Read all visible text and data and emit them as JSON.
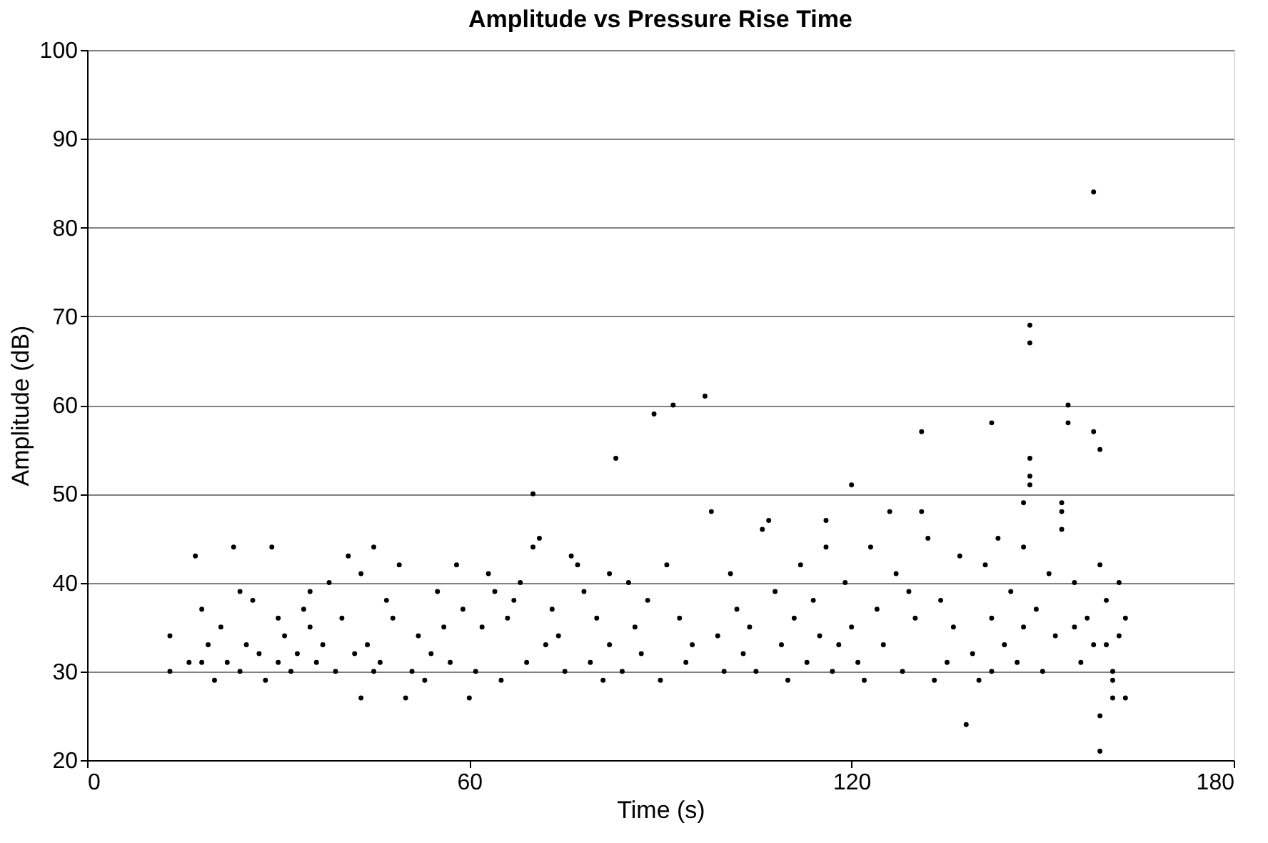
{
  "chart_data": {
    "type": "scatter",
    "title": "Amplitude vs Pressure Rise Time",
    "xlabel": "Time (s)",
    "ylabel": "Amplitude (dB)",
    "xlim": [
      0,
      180
    ],
    "xticks": [
      0,
      60,
      120,
      180
    ],
    "ylim": [
      20,
      100
    ],
    "yticks": [
      20,
      30,
      40,
      50,
      60,
      70,
      80,
      90,
      100
    ],
    "grid": "y",
    "series": [
      {
        "color": "#000000",
        "x": [
          13,
          13,
          16,
          17,
          18,
          18,
          19,
          20,
          21,
          22,
          23,
          24,
          24,
          25,
          26,
          27,
          28,
          29,
          30,
          30,
          31,
          32,
          33,
          34,
          35,
          35,
          36,
          37,
          38,
          39,
          40,
          41,
          42,
          43,
          43,
          44,
          45,
          45,
          46,
          47,
          48,
          49,
          50,
          51,
          52,
          53,
          54,
          55,
          56,
          57,
          58,
          59,
          60,
          61,
          62,
          63,
          64,
          65,
          66,
          67,
          68,
          69,
          70,
          70,
          71,
          72,
          73,
          74,
          75,
          76,
          77,
          78,
          79,
          80,
          81,
          82,
          82,
          83,
          84,
          85,
          86,
          87,
          88,
          89,
          90,
          91,
          92,
          93,
          94,
          95,
          97,
          98,
          99,
          100,
          101,
          102,
          103,
          104,
          105,
          106,
          107,
          108,
          109,
          110,
          111,
          112,
          113,
          114,
          115,
          116,
          116,
          117,
          118,
          119,
          120,
          120,
          121,
          122,
          123,
          124,
          125,
          126,
          127,
          128,
          129,
          130,
          131,
          131,
          132,
          133,
          134,
          135,
          136,
          137,
          138,
          139,
          140,
          141,
          142,
          142,
          143,
          142,
          144,
          145,
          146,
          147,
          147,
          148,
          148,
          148,
          148,
          148,
          147,
          149,
          150,
          151,
          152,
          153,
          153,
          153,
          154,
          154,
          155,
          155,
          156,
          157,
          158,
          158,
          159,
          158,
          159,
          159,
          160,
          159,
          161,
          161,
          162,
          162,
          163,
          160,
          161,
          163
        ],
        "values": [
          34,
          30,
          31,
          43,
          37,
          31,
          33,
          29,
          35,
          31,
          44,
          30,
          39,
          33,
          38,
          32,
          29,
          44,
          31,
          36,
          34,
          30,
          32,
          37,
          35,
          39,
          31,
          33,
          40,
          30,
          36,
          43,
          32,
          41,
          27,
          33,
          30,
          44,
          31,
          38,
          36,
          42,
          27,
          30,
          34,
          29,
          32,
          39,
          35,
          31,
          42,
          37,
          27,
          30,
          35,
          41,
          39,
          29,
          36,
          38,
          40,
          31,
          44,
          50,
          45,
          33,
          37,
          34,
          30,
          43,
          42,
          39,
          31,
          36,
          29,
          41,
          33,
          54,
          30,
          40,
          35,
          32,
          38,
          59,
          29,
          42,
          60,
          36,
          31,
          33,
          61,
          48,
          34,
          30,
          41,
          37,
          32,
          35,
          30,
          46,
          47,
          39,
          33,
          29,
          36,
          42,
          31,
          38,
          34,
          44,
          47,
          30,
          33,
          40,
          35,
          51,
          31,
          29,
          44,
          37,
          33,
          48,
          41,
          30,
          39,
          36,
          48,
          57,
          45,
          29,
          38,
          31,
          35,
          43,
          24,
          32,
          29,
          42,
          36,
          30,
          45,
          58,
          33,
          39,
          31,
          35,
          44,
          69,
          67,
          54,
          52,
          51,
          49,
          37,
          30,
          41,
          34,
          49,
          48,
          46,
          60,
          58,
          40,
          35,
          31,
          36,
          84,
          57,
          55,
          33,
          42,
          21,
          38,
          25,
          29,
          27,
          34,
          40,
          27,
          33,
          30,
          36
        ]
      }
    ]
  }
}
